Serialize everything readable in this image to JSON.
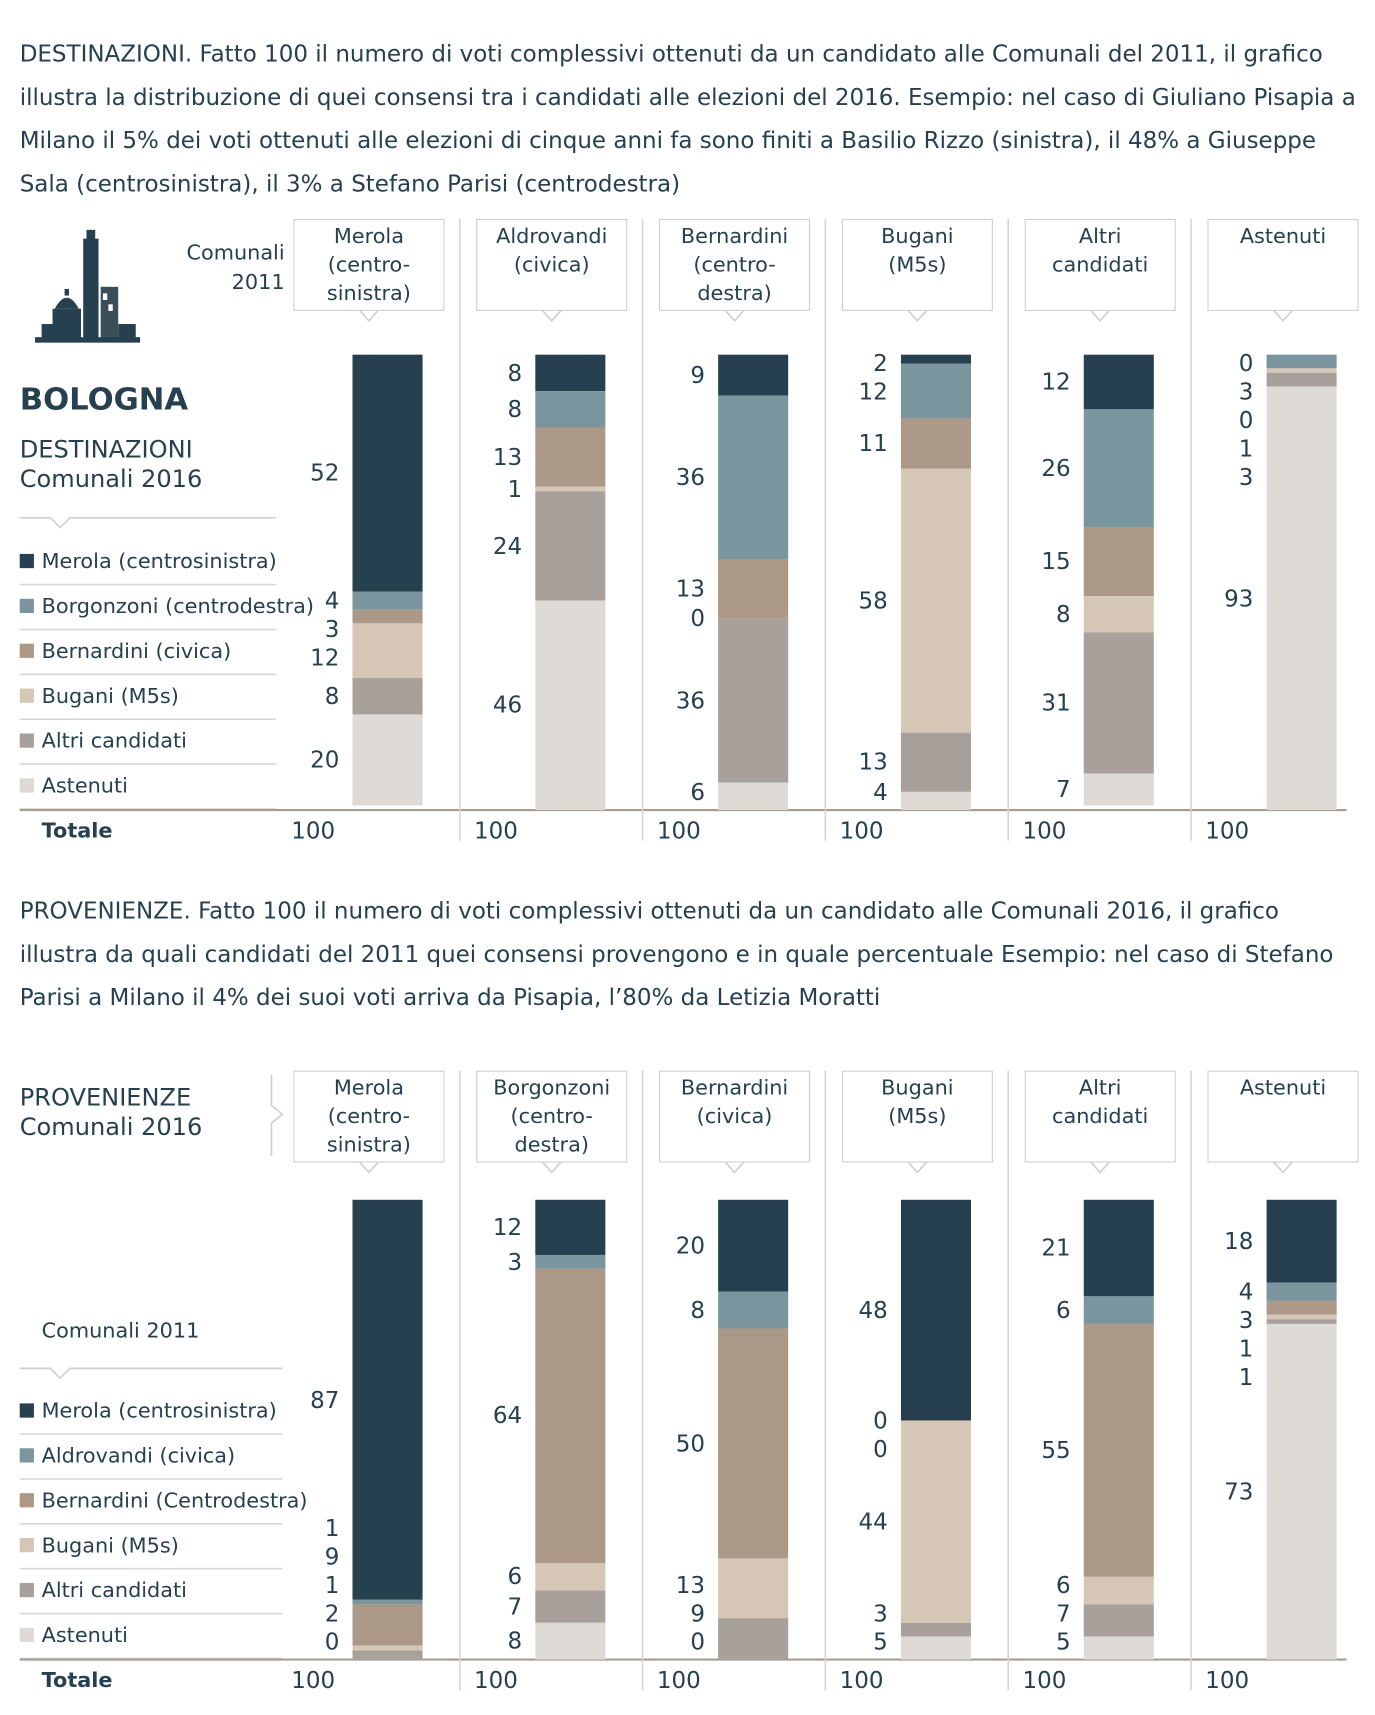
{
  "chart_data": [
    {
      "type": "bar",
      "stacked": true,
      "description": "DESTINAZIONI. Fatto 100 il numero di voti complessivi ottenuti da un candidato alle Comunali del 2011, il grafico illustra la distribuzione di quei consensi tra i candidati alle elezioni del 2016. Esempio: nel caso di Giuliano Pisapia a Milano il 5% dei voti ottenuti alle elezioni di cinque anni fa sono finiti a Basilio Rizzo (sinistra), il 48% a Giuseppe Sala (centrosinistra), il 3% a Stefano Parisi (centrodestra)",
      "title": "BOLOGNA",
      "category_title": "Comunali 2011",
      "legend_title": "DESTINAZIONI",
      "legend_subtitle": "Comunali 2016",
      "categories": [
        "Merola (centro-sinistra)",
        "Aldrovandi (civica)",
        "Bernardini (centro-destra)",
        "Bugani (M5s)",
        "Altri candidati",
        "Astenuti"
      ],
      "series": [
        {
          "name": "Merola (centrosinistra)",
          "color": "#26404f",
          "values": [
            52,
            8,
            9,
            2,
            12,
            0
          ]
        },
        {
          "name": "Borgonzoni (centrodestra)",
          "color": "#7b959e",
          "values": [
            4,
            8,
            36,
            12,
            26,
            3
          ]
        },
        {
          "name": "Bernardini (civica)",
          "color": "#ab9886",
          "values": [
            3,
            13,
            13,
            11,
            15,
            0
          ]
        },
        {
          "name": "Bugani (M5s)",
          "color": "#d6c6b6",
          "values": [
            12,
            1,
            0,
            58,
            8,
            1
          ]
        },
        {
          "name": "Altri candidati",
          "color": "#a8a19b",
          "values": [
            8,
            24,
            36,
            13,
            31,
            3
          ]
        },
        {
          "name": "Astenuti",
          "color": "#dedad5",
          "values": [
            20,
            46,
            6,
            4,
            7,
            93
          ]
        }
      ],
      "total_label": "Totale",
      "totals": [
        100,
        100,
        100,
        100,
        100,
        100
      ],
      "ylim": [
        0,
        100
      ]
    },
    {
      "type": "bar",
      "stacked": true,
      "description": "PROVENIENZE. Fatto 100 il numero di voti complessivi ottenuti da un candidato alle Comunali 2016, il grafico illustra da quali candidati del 2011 quei consensi provengono e in quale percentuale Esempio: nel caso di Stefano Parisi a Milano il 4% dei suoi voti arriva da Pisapia, l’80% da Letizia Moratti",
      "category_title": "PROVENIENZE",
      "category_subtitle": "Comunali 2016",
      "legend_title": "Comunali 2011",
      "categories": [
        "Merola (centro-sinistra)",
        "Borgonzoni (centro-destra)",
        "Bernardini (civica)",
        "Bugani (M5s)",
        "Altri candidati",
        "Astenuti"
      ],
      "series": [
        {
          "name": "Merola (centrosinistra)",
          "color": "#26404f",
          "values": [
            87,
            12,
            20,
            48,
            21,
            18
          ]
        },
        {
          "name": "Aldrovandi (civica)",
          "color": "#7b959e",
          "values": [
            1,
            3,
            8,
            0,
            6,
            4
          ]
        },
        {
          "name": "Bernardini (Centrodestra)",
          "color": "#ab9886",
          "values": [
            9,
            64,
            50,
            0,
            55,
            3
          ]
        },
        {
          "name": "Bugani (M5s)",
          "color": "#d6c6b6",
          "values": [
            1,
            6,
            13,
            44,
            6,
            1
          ]
        },
        {
          "name": "Altri candidati",
          "color": "#a8a19b",
          "values": [
            2,
            7,
            9,
            3,
            7,
            1
          ]
        },
        {
          "name": "Astenuti",
          "color": "#dedad5",
          "values": [
            0,
            8,
            0,
            5,
            5,
            73
          ]
        }
      ],
      "total_label": "Totale",
      "totals": [
        100,
        100,
        100,
        100,
        100,
        100
      ],
      "ylim": [
        0,
        100
      ]
    }
  ]
}
